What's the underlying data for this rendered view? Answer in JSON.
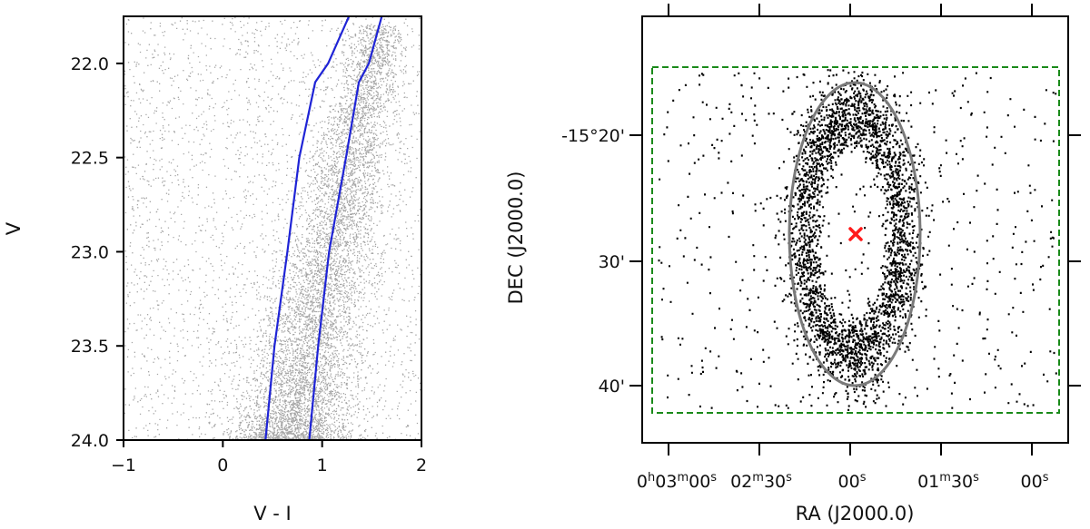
{
  "chart_data": [
    {
      "type": "scatter",
      "title": "",
      "xlabel": "V - I",
      "ylabel": "V",
      "xlim": [
        -1,
        2
      ],
      "ylim": [
        24.0,
        21.75
      ],
      "y_inverted": true,
      "xticks": [
        {
          "value": -1,
          "label": "−1"
        },
        {
          "value": 0,
          "label": "0"
        },
        {
          "value": 1,
          "label": "1"
        },
        {
          "value": 2,
          "label": "2"
        }
      ],
      "yticks": [
        {
          "value": 22.0,
          "label": "22.0"
        },
        {
          "value": 22.5,
          "label": "22.5"
        },
        {
          "value": 23.0,
          "label": "23.0"
        },
        {
          "value": 23.5,
          "label": "23.5"
        },
        {
          "value": 24.0,
          "label": "24.0"
        }
      ],
      "point_color": "#000000",
      "line_color": "#1f24d6",
      "lines": [
        {
          "x": [
            0.43,
            0.52,
            0.65,
            0.77,
            0.93,
            1.06,
            1.27
          ],
          "y": [
            24.0,
            23.5,
            23.0,
            22.5,
            22.1,
            22.0,
            21.75
          ]
        },
        {
          "x": [
            0.87,
            0.96,
            1.07,
            1.24,
            1.37,
            1.47,
            1.6
          ],
          "y": [
            24.0,
            23.5,
            23.0,
            22.5,
            22.1,
            22.0,
            21.75
          ]
        }
      ]
    },
    {
      "type": "scatter",
      "title": "",
      "xlabel": "RA (J2000.0)",
      "ylabel": "DEC (J2000.0)",
      "bottom_ticks": [
        {
          "label": "0<tspan baseline-shift='super' font-size='13'>h</tspan>03<tspan baseline-shift='super' font-size='13'>m</tspan>00<tspan baseline-shift='super' font-size='13'>s</tspan>",
          "text": "0h03m00s"
        },
        {
          "label": "02<tspan baseline-shift='super' font-size='13'>m</tspan>30<tspan baseline-shift='super' font-size='13'>s</tspan>",
          "text": "02m30s"
        },
        {
          "label": "00<tspan baseline-shift='super' font-size='13'>s</tspan>",
          "text": "00s"
        },
        {
          "label": "01<tspan baseline-shift='super' font-size='13'>m</tspan>30<tspan baseline-shift='super' font-size='13'>s</tspan>",
          "text": "01m30s"
        },
        {
          "label": "00<tspan baseline-shift='super' font-size='13'>s</tspan>",
          "text": "00s"
        }
      ],
      "left_ticks": [
        "-15°20'",
        "30'",
        "40'"
      ],
      "center_marker": "red-x",
      "ellipse_color": "#7a7a7a",
      "field_box_color": "#1a8a1a",
      "marker_color": "#ff1a1a"
    }
  ]
}
